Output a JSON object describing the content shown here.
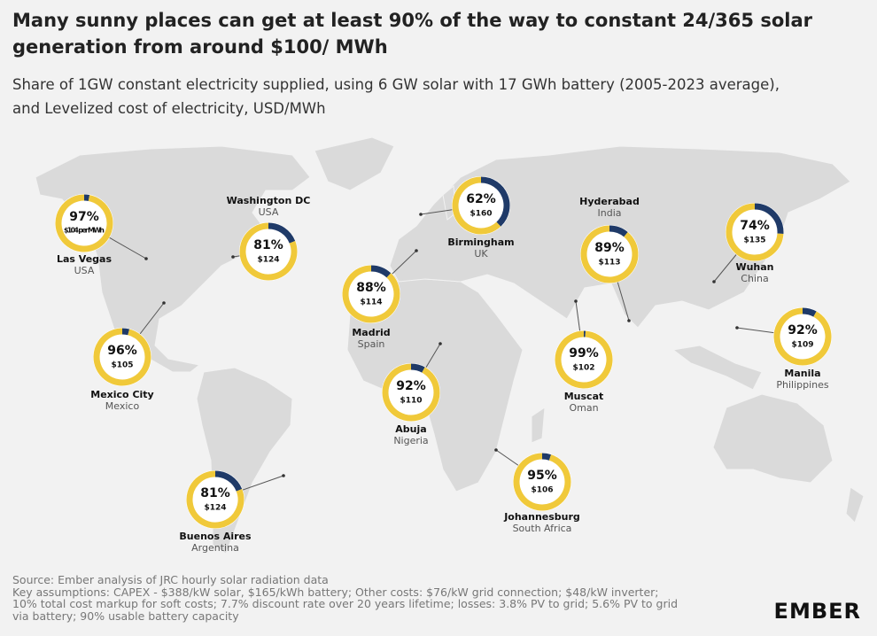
{
  "header": {
    "title": "Many sunny places can get at least 90% of the way to constant 24/365 solar generation from around $100/ MWh",
    "subtitle": "Share of 1GW constant electricity supplied, using 6 GW solar with 17 GWh battery (2005-2023 average), and Levelized cost of electricity, USD/MWh"
  },
  "cities": [
    {
      "name": "Las Vegas",
      "country": "USA",
      "share": 97,
      "share_label": "97%",
      "cost_label": "$104 per MWh"
    },
    {
      "name": "Washington DC",
      "country": "USA",
      "share": 81,
      "share_label": "81%",
      "cost_label": "$124"
    },
    {
      "name": "Mexico City",
      "country": "Mexico",
      "share": 96,
      "share_label": "96%",
      "cost_label": "$105"
    },
    {
      "name": "Buenos Aires",
      "country": "Argentina",
      "share": 81,
      "share_label": "81%",
      "cost_label": "$124"
    },
    {
      "name": "Madrid",
      "country": "Spain",
      "share": 88,
      "share_label": "88%",
      "cost_label": "$114"
    },
    {
      "name": "Abuja",
      "country": "Nigeria",
      "share": 92,
      "share_label": "92%",
      "cost_label": "$110"
    },
    {
      "name": "Birmingham",
      "country": "UK",
      "share": 62,
      "share_label": "62%",
      "cost_label": "$160"
    },
    {
      "name": "Hyderabad",
      "country": "India",
      "share": 89,
      "share_label": "89%",
      "cost_label": "$113"
    },
    {
      "name": "Muscat",
      "country": "Oman",
      "share": 99,
      "share_label": "99%",
      "cost_label": "$102"
    },
    {
      "name": "Johannesburg",
      "country": "South Africa",
      "share": 95,
      "share_label": "95%",
      "cost_label": "$106"
    },
    {
      "name": "Wuhan",
      "country": "China",
      "share": 74,
      "share_label": "74%",
      "cost_label": "$135"
    },
    {
      "name": "Manila",
      "country": "Philippines",
      "share": 92,
      "share_label": "92%",
      "cost_label": "$109"
    }
  ],
  "footer": {
    "source": [
      "Source: Ember analysis of JRC hourly solar radiation data",
      "Key assumptions: CAPEX - $388/kW solar, $165/kWh battery; Other costs: $76/kW grid connection; $48/kW inverter;",
      "10% total cost markup for soft costs; 7.7% discount rate over 20 years lifetime; losses: 3.8% PV to grid; 5.6% PV to grid",
      "via battery; 90% usable battery capacity"
    ],
    "logo": "EMBER"
  }
}
